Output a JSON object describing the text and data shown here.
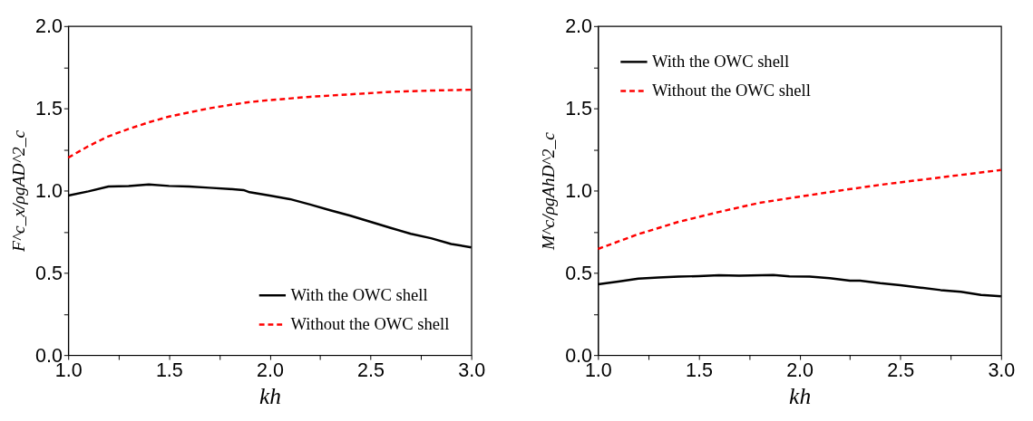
{
  "chart_data": [
    {
      "type": "line",
      "xlabel": "kh",
      "ylabel": "F^c_x/ρgAD^2_c",
      "xlim": [
        1.0,
        3.0
      ],
      "ylim": [
        0.0,
        2.0
      ],
      "xticks": [
        {
          "value": 1.0,
          "label": "1.0"
        },
        {
          "value": 1.25,
          "label": null
        },
        {
          "value": 1.5,
          "label": "1.5"
        },
        {
          "value": 1.75,
          "label": null
        },
        {
          "value": 2.0,
          "label": "2.0"
        },
        {
          "value": 2.25,
          "label": null
        },
        {
          "value": 2.5,
          "label": "2.5"
        },
        {
          "value": 2.75,
          "label": null
        },
        {
          "value": 3.0,
          "label": "3.0"
        }
      ],
      "yticks": [
        {
          "value": 0.0,
          "label": "0.0"
        },
        {
          "value": 0.25,
          "label": null
        },
        {
          "value": 0.5,
          "label": "0.5"
        },
        {
          "value": 0.75,
          "label": null
        },
        {
          "value": 1.0,
          "label": "1.0"
        },
        {
          "value": 1.25,
          "label": null
        },
        {
          "value": 1.5,
          "label": "1.5"
        },
        {
          "value": 1.75,
          "label": null
        },
        {
          "value": 2.0,
          "label": "2.0"
        }
      ],
      "legend": "bottom right",
      "grid": false,
      "series": [
        {
          "name": "With the OWC shell",
          "color": "#000000",
          "line_style": "solid",
          "x": [
            1.0,
            1.1,
            1.2,
            1.3,
            1.4,
            1.5,
            1.6,
            1.7,
            1.8,
            1.87,
            1.9,
            2.0,
            2.1,
            2.2,
            2.3,
            2.4,
            2.5,
            2.6,
            2.7,
            2.8,
            2.9,
            3.0
          ],
          "values": [
            0.97,
            0.995,
            1.025,
            1.027,
            1.037,
            1.028,
            1.025,
            1.017,
            1.01,
            1.003,
            0.99,
            0.97,
            0.948,
            0.915,
            0.88,
            0.847,
            0.81,
            0.773,
            0.737,
            0.71,
            0.675,
            0.655
          ]
        },
        {
          "name": "Without the OWC shell",
          "color": "#ff0000",
          "line_style": "dashed",
          "x": [
            1.0,
            1.1,
            1.2,
            1.3,
            1.4,
            1.5,
            1.6,
            1.7,
            1.8,
            1.9,
            2.0,
            2.2,
            2.4,
            2.6,
            2.8,
            3.0
          ],
          "values": [
            1.2,
            1.27,
            1.33,
            1.375,
            1.415,
            1.45,
            1.475,
            1.5,
            1.52,
            1.538,
            1.55,
            1.57,
            1.585,
            1.6,
            1.608,
            1.613
          ]
        }
      ]
    },
    {
      "type": "line",
      "xlabel": "kh",
      "ylabel": "M^c/ρgAhD^2_c",
      "xlim": [
        1.0,
        3.0
      ],
      "ylim": [
        0.0,
        2.0
      ],
      "xticks": [
        {
          "value": 1.0,
          "label": "1.0"
        },
        {
          "value": 1.25,
          "label": null
        },
        {
          "value": 1.5,
          "label": "1.5"
        },
        {
          "value": 1.75,
          "label": null
        },
        {
          "value": 2.0,
          "label": "2.0"
        },
        {
          "value": 2.25,
          "label": null
        },
        {
          "value": 2.5,
          "label": "2.5"
        },
        {
          "value": 2.75,
          "label": null
        },
        {
          "value": 3.0,
          "label": "3.0"
        }
      ],
      "yticks": [
        {
          "value": 0.0,
          "label": "0.0"
        },
        {
          "value": 0.25,
          "label": null
        },
        {
          "value": 0.5,
          "label": "0.5"
        },
        {
          "value": 0.75,
          "label": null
        },
        {
          "value": 1.0,
          "label": "1.0"
        },
        {
          "value": 1.25,
          "label": null
        },
        {
          "value": 1.5,
          "label": "1.5"
        },
        {
          "value": 1.75,
          "label": null
        },
        {
          "value": 2.0,
          "label": "2.0"
        }
      ],
      "legend": "top left",
      "grid": false,
      "series": [
        {
          "name": "With the OWC shell",
          "color": "#000000",
          "line_style": "solid",
          "x": [
            1.0,
            1.1,
            1.2,
            1.3,
            1.4,
            1.5,
            1.6,
            1.7,
            1.87,
            1.95,
            2.05,
            2.15,
            2.25,
            2.3,
            2.4,
            2.5,
            2.6,
            2.7,
            2.8,
            2.9,
            3.0
          ],
          "values": [
            0.43,
            0.447,
            0.465,
            0.472,
            0.477,
            0.48,
            0.485,
            0.483,
            0.487,
            0.478,
            0.477,
            0.467,
            0.452,
            0.452,
            0.437,
            0.425,
            0.41,
            0.395,
            0.385,
            0.366,
            0.357
          ]
        },
        {
          "name": "Without the OWC shell",
          "color": "#ff0000",
          "line_style": "dashed",
          "x": [
            1.0,
            1.2,
            1.4,
            1.6,
            1.8,
            2.0,
            2.2,
            2.4,
            2.6,
            2.8,
            3.0
          ],
          "values": [
            0.645,
            0.735,
            0.81,
            0.87,
            0.925,
            0.963,
            1.0,
            1.035,
            1.065,
            1.095,
            1.125
          ]
        }
      ]
    }
  ]
}
